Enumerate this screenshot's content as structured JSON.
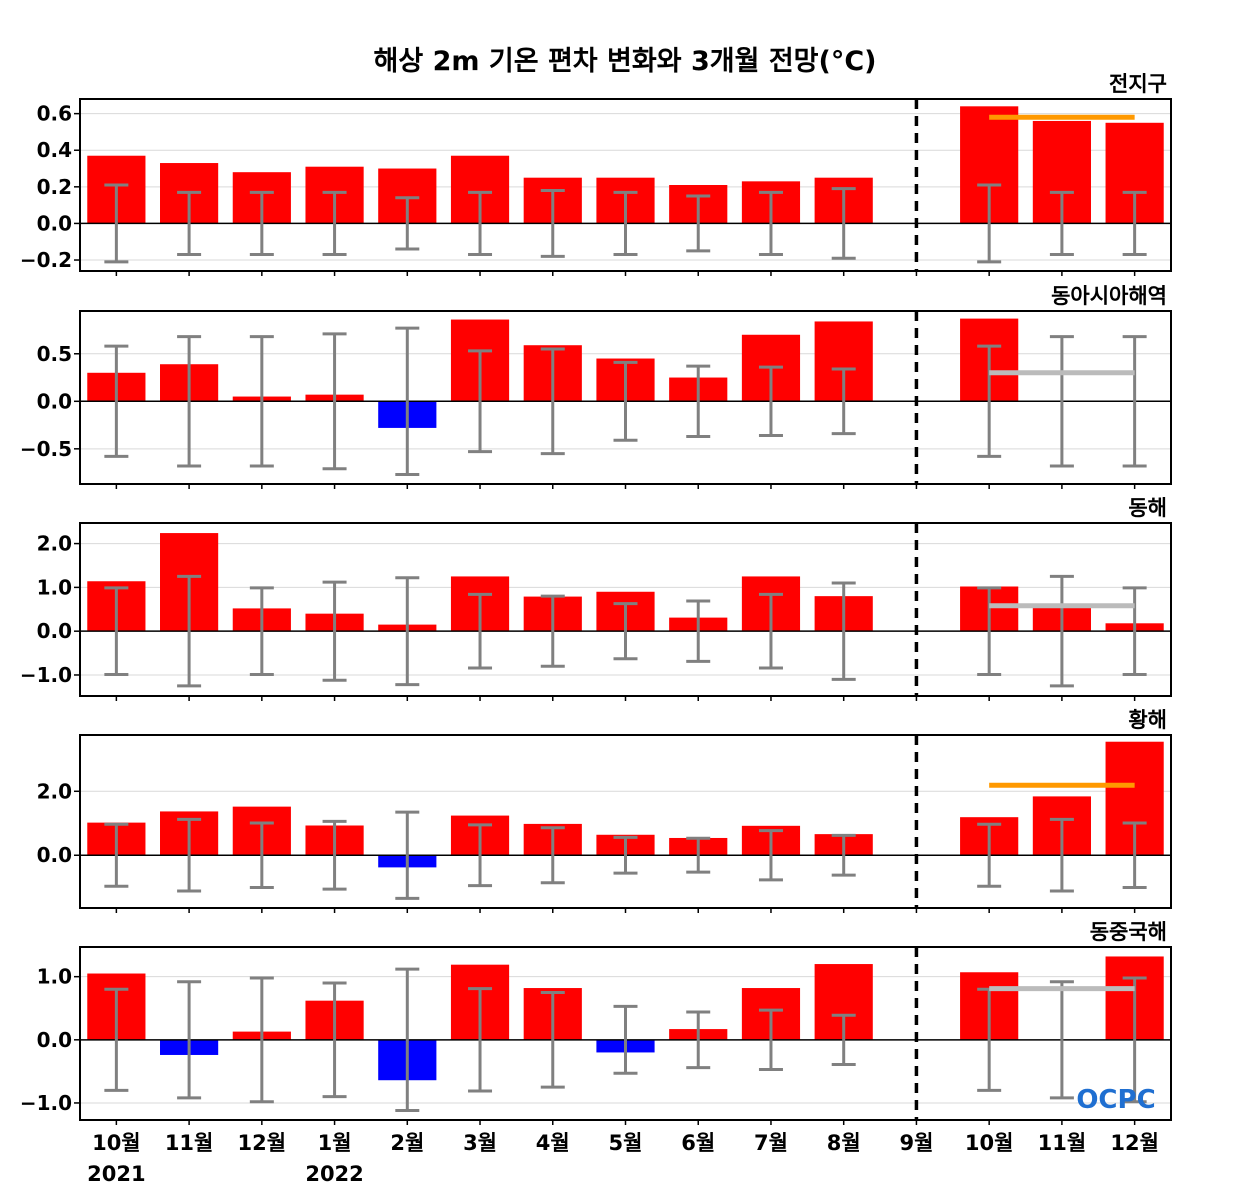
{
  "title": "해상 2m 기온 편차 변화와 3개월 전망(°C)",
  "logo_text": "OCPC",
  "colors": {
    "positive": "#ff0000",
    "negative": "#0000ff",
    "errorbar": "#808080",
    "outlook_orange": "#ff9900",
    "outlook_gray": "#bbbbbb",
    "grid": "#d9d9d9",
    "axis": "#000000",
    "logo": "#1f6fd1"
  },
  "x_labels": [
    "10월",
    "11월",
    "12월",
    "1월",
    "2월",
    "3월",
    "4월",
    "5월",
    "6월",
    "7월",
    "8월",
    "9월",
    "10월",
    "11월",
    "12월"
  ],
  "year_labels": [
    {
      "index": 0,
      "text": "2021"
    },
    {
      "index": 3,
      "text": "2022"
    }
  ],
  "divider_index": 11,
  "chart_data": [
    {
      "type": "bar",
      "region": "전지구",
      "categories": [
        "10월",
        "11월",
        "12월",
        "1월",
        "2월",
        "3월",
        "4월",
        "5월",
        "6월",
        "7월",
        "8월",
        "9월",
        "10월",
        "11월",
        "12월"
      ],
      "values": [
        0.37,
        0.33,
        0.28,
        0.31,
        0.3,
        0.37,
        0.25,
        0.25,
        0.21,
        0.23,
        0.25,
        0.0,
        0.64,
        0.56,
        0.55
      ],
      "error_bars": [
        0.21,
        0.17,
        0.17,
        0.17,
        0.14,
        0.17,
        0.18,
        0.17,
        0.15,
        0.17,
        0.19,
        0.0,
        0.21,
        0.17,
        0.17
      ],
      "outlook_mean": 0.58,
      "outlook_color": "orange",
      "yticks": [
        -0.2,
        0.0,
        0.2,
        0.4,
        0.6
      ],
      "tick_labels": [
        "−0.2",
        "0.0",
        "0.2",
        "0.4",
        "0.6"
      ],
      "ylim": [
        -0.26,
        0.68
      ]
    },
    {
      "type": "bar",
      "region": "동아시아해역",
      "categories": [
        "10월",
        "11월",
        "12월",
        "1월",
        "2월",
        "3월",
        "4월",
        "5월",
        "6월",
        "7월",
        "8월",
        "9월",
        "10월",
        "11월",
        "12월"
      ],
      "values": [
        0.3,
        0.39,
        0.05,
        0.07,
        -0.28,
        0.86,
        0.59,
        0.45,
        0.25,
        0.7,
        0.84,
        0.0,
        0.87,
        0.0,
        0.0
      ],
      "error_bars": [
        0.58,
        0.68,
        0.68,
        0.71,
        0.77,
        0.53,
        0.55,
        0.41,
        0.37,
        0.36,
        0.34,
        0.0,
        0.58,
        0.68,
        0.68
      ],
      "outlook_mean": 0.3,
      "outlook_color": "gray",
      "yticks": [
        -0.5,
        0.0,
        0.5
      ],
      "tick_labels": [
        "−0.5",
        "0.0",
        "0.5"
      ],
      "ylim": [
        -0.87,
        0.95
      ]
    },
    {
      "type": "bar",
      "region": "동해",
      "categories": [
        "10월",
        "11월",
        "12월",
        "1월",
        "2월",
        "3월",
        "4월",
        "5월",
        "6월",
        "7월",
        "8월",
        "9월",
        "10월",
        "11월",
        "12월"
      ],
      "values": [
        1.14,
        2.24,
        0.52,
        0.4,
        0.15,
        1.25,
        0.79,
        0.9,
        0.31,
        1.25,
        0.8,
        0.0,
        1.02,
        0.6,
        0.18
      ],
      "error_bars": [
        0.99,
        1.25,
        0.99,
        1.12,
        1.22,
        0.84,
        0.8,
        0.63,
        0.69,
        0.84,
        1.1,
        0.0,
        0.99,
        1.25,
        0.99
      ],
      "outlook_mean": 0.58,
      "outlook_color": "gray",
      "yticks": [
        -1.0,
        0.0,
        1.0,
        2.0
      ],
      "tick_labels": [
        "−1.0",
        "0.0",
        "1.0",
        "2.0"
      ],
      "ylim": [
        -1.48,
        2.47
      ]
    },
    {
      "type": "bar",
      "region": "황해",
      "categories": [
        "10월",
        "11월",
        "12월",
        "1월",
        "2월",
        "3월",
        "4월",
        "5월",
        "6월",
        "7월",
        "8월",
        "9월",
        "10월",
        "11월",
        "12월"
      ],
      "values": [
        1.02,
        1.37,
        1.52,
        0.93,
        -0.38,
        1.24,
        0.98,
        0.64,
        0.54,
        0.92,
        0.66,
        0.0,
        1.19,
        1.84,
        3.55
      ],
      "error_bars": [
        0.97,
        1.12,
        1.01,
        1.06,
        1.35,
        0.95,
        0.86,
        0.56,
        0.53,
        0.77,
        0.62,
        0.0,
        0.97,
        1.12,
        1.01
      ],
      "outlook_mean": 2.19,
      "outlook_color": "orange",
      "yticks": [
        0.0,
        2.0
      ],
      "tick_labels": [
        "0.0",
        "2.0"
      ],
      "ylim": [
        -1.65,
        3.76
      ]
    },
    {
      "type": "bar",
      "region": "동중국해",
      "categories": [
        "10월",
        "11월",
        "12월",
        "1월",
        "2월",
        "3월",
        "4월",
        "5월",
        "6월",
        "7월",
        "8월",
        "9월",
        "10월",
        "11월",
        "12월"
      ],
      "values": [
        1.05,
        -0.24,
        0.13,
        0.62,
        -0.64,
        1.19,
        0.82,
        -0.2,
        0.17,
        0.82,
        1.2,
        0.0,
        1.07,
        0.0,
        1.32
      ],
      "error_bars": [
        0.8,
        0.92,
        0.98,
        0.9,
        1.12,
        0.81,
        0.75,
        0.53,
        0.44,
        0.47,
        0.39,
        0.0,
        0.8,
        0.92,
        0.98
      ],
      "outlook_mean": 0.81,
      "outlook_color": "gray",
      "yticks": [
        -1.0,
        0.0,
        1.0
      ],
      "tick_labels": [
        "−1.0",
        "0.0",
        "1.0"
      ],
      "ylim": [
        -1.27,
        1.47
      ]
    }
  ]
}
